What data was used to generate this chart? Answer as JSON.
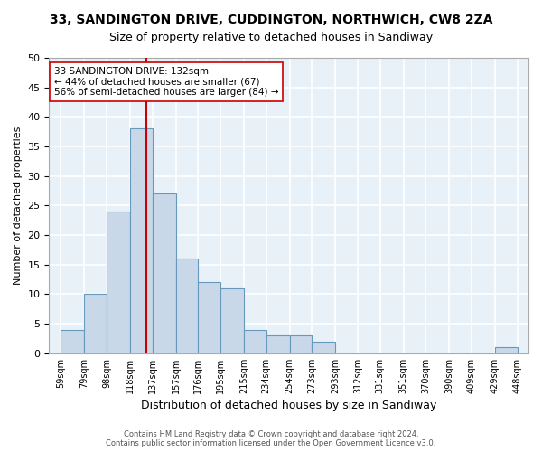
{
  "title": "33, SANDINGTON DRIVE, CUDDINGTON, NORTHWICH, CW8 2ZA",
  "subtitle": "Size of property relative to detached houses in Sandiway",
  "xlabel": "Distribution of detached houses by size in Sandiway",
  "ylabel": "Number of detached properties",
  "bar_color": "#c8d8e8",
  "bar_edge_color": "#6699bb",
  "background_color": "#e8f0f8",
  "grid_color": "#ffffff",
  "vline_x": 132,
  "vline_color": "#cc0000",
  "annotation_text": "33 SANDINGTON DRIVE: 132sqm\n← 44% of detached houses are smaller (67)\n56% of semi-detached houses are larger (84) →",
  "annotation_box_color": "#ffffff",
  "annotation_box_edge": "#cc0000",
  "footer_line1": "Contains HM Land Registry data © Crown copyright and database right 2024.",
  "footer_line2": "Contains public sector information licensed under the Open Government Licence v3.0.",
  "bin_edges": [
    59,
    79,
    98,
    118,
    137,
    157,
    176,
    195,
    215,
    234,
    254,
    273,
    293,
    312,
    331,
    351,
    370,
    390,
    409,
    429,
    448
  ],
  "bin_labels": [
    "59sqm",
    "79sqm",
    "98sqm",
    "118sqm",
    "137sqm",
    "157sqm",
    "176sqm",
    "195sqm",
    "215sqm",
    "234sqm",
    "254sqm",
    "273sqm",
    "293sqm",
    "312sqm",
    "331sqm",
    "351sqm",
    "370sqm",
    "390sqm",
    "409sqm",
    "429sqm",
    "448sqm"
  ],
  "counts": [
    4,
    10,
    24,
    38,
    27,
    16,
    12,
    11,
    4,
    3,
    3,
    2,
    0,
    0,
    0,
    0,
    0,
    0,
    0,
    1
  ],
  "ylim": [
    0,
    50
  ],
  "yticks": [
    0,
    5,
    10,
    15,
    20,
    25,
    30,
    35,
    40,
    45,
    50
  ]
}
